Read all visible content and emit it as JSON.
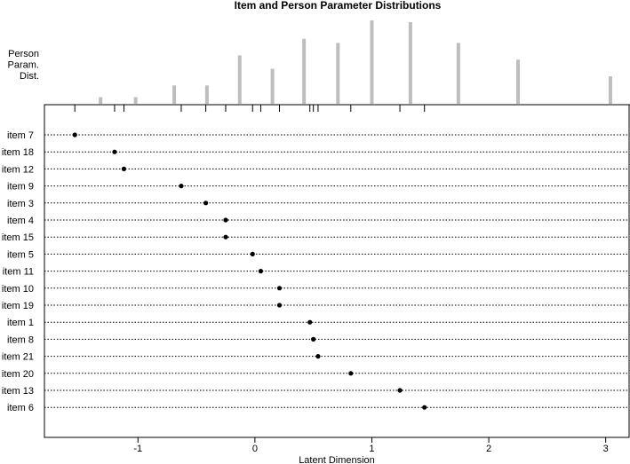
{
  "chart_data": {
    "type": "scatter",
    "title": "Item and Person Parameter Distributions",
    "xlabel": "Latent Dimension",
    "xlim": [
      -1.8,
      3.2
    ],
    "x_ticks": [
      -1,
      0,
      1,
      2,
      3
    ],
    "person_label": [
      "Person",
      "Param.",
      "Dist."
    ],
    "person_distribution": {
      "type": "bar",
      "x": [
        -1.32,
        -1.02,
        -0.69,
        -0.41,
        -0.13,
        0.15,
        0.42,
        0.71,
        1.0,
        1.33,
        1.74,
        2.25,
        3.04
      ],
      "values": [
        0.08,
        0.08,
        0.22,
        0.22,
        0.58,
        0.42,
        0.78,
        0.73,
        1.0,
        0.98,
        0.73,
        0.53,
        0.33
      ]
    },
    "item_ticks": [
      -1.54,
      -1.2,
      -1.12,
      -0.63,
      -0.42,
      -0.25,
      -0.25,
      -0.02,
      0.05,
      0.21,
      0.21,
      0.47,
      0.5,
      0.54,
      0.82,
      1.24,
      1.45
    ],
    "items": [
      {
        "label": "item 7",
        "value": -1.54
      },
      {
        "label": "item 18",
        "value": -1.2
      },
      {
        "label": "item 12",
        "value": -1.12
      },
      {
        "label": "item 9",
        "value": -0.63
      },
      {
        "label": "item 3",
        "value": -0.42
      },
      {
        "label": "item 4",
        "value": -0.25
      },
      {
        "label": "item 15",
        "value": -0.25
      },
      {
        "label": "item 5",
        "value": -0.02
      },
      {
        "label": "item 11",
        "value": 0.05
      },
      {
        "label": "item 10",
        "value": 0.21
      },
      {
        "label": "item 19",
        "value": 0.21
      },
      {
        "label": "item 1",
        "value": 0.47
      },
      {
        "label": "item 8",
        "value": 0.5
      },
      {
        "label": "item 21",
        "value": 0.54
      },
      {
        "label": "item 20",
        "value": 0.82
      },
      {
        "label": "item 13",
        "value": 1.24
      },
      {
        "label": "item 6",
        "value": 1.45
      }
    ],
    "colors": {
      "person_bars": "#bebebe",
      "points": "#000000",
      "guide_lines": "#000000"
    },
    "grid": false,
    "legend": "none"
  }
}
